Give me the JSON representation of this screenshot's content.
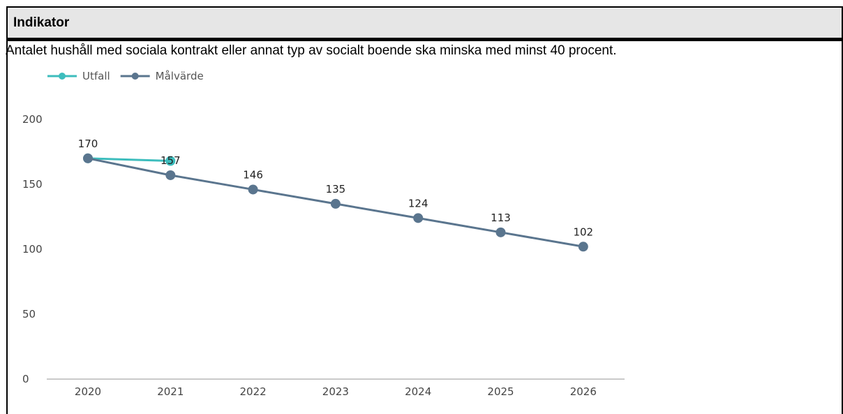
{
  "header": {
    "title": "Indikator"
  },
  "description": "Antalet hushåll med sociala kontrakt eller annat typ av socialt boende ska minska med minst 40 procent.",
  "colors": {
    "utfall": "#3dbdbd",
    "malvarde": "#5a758e",
    "axis": "#aaaaaa"
  },
  "chart_data": {
    "type": "line",
    "categories": [
      "2020",
      "2021",
      "2022",
      "2023",
      "2024",
      "2025",
      "2026"
    ],
    "ylim": [
      0,
      200
    ],
    "yticks": [
      0,
      50,
      100,
      150,
      200
    ],
    "title": "",
    "xlabel": "",
    "ylabel": "",
    "grid": false,
    "legend_position": "top-left",
    "series": [
      {
        "name": "Utfall",
        "color": "#3dbdbd",
        "values": [
          170,
          168,
          null,
          null,
          null,
          null,
          null
        ],
        "labels": [
          "",
          "",
          "",
          "",
          "",
          "",
          ""
        ]
      },
      {
        "name": "Målvärde",
        "color": "#5a758e",
        "values": [
          170,
          157,
          146,
          135,
          124,
          113,
          102
        ],
        "labels": [
          "170",
          "157",
          "146",
          "135",
          "124",
          "113",
          "102"
        ]
      }
    ]
  }
}
